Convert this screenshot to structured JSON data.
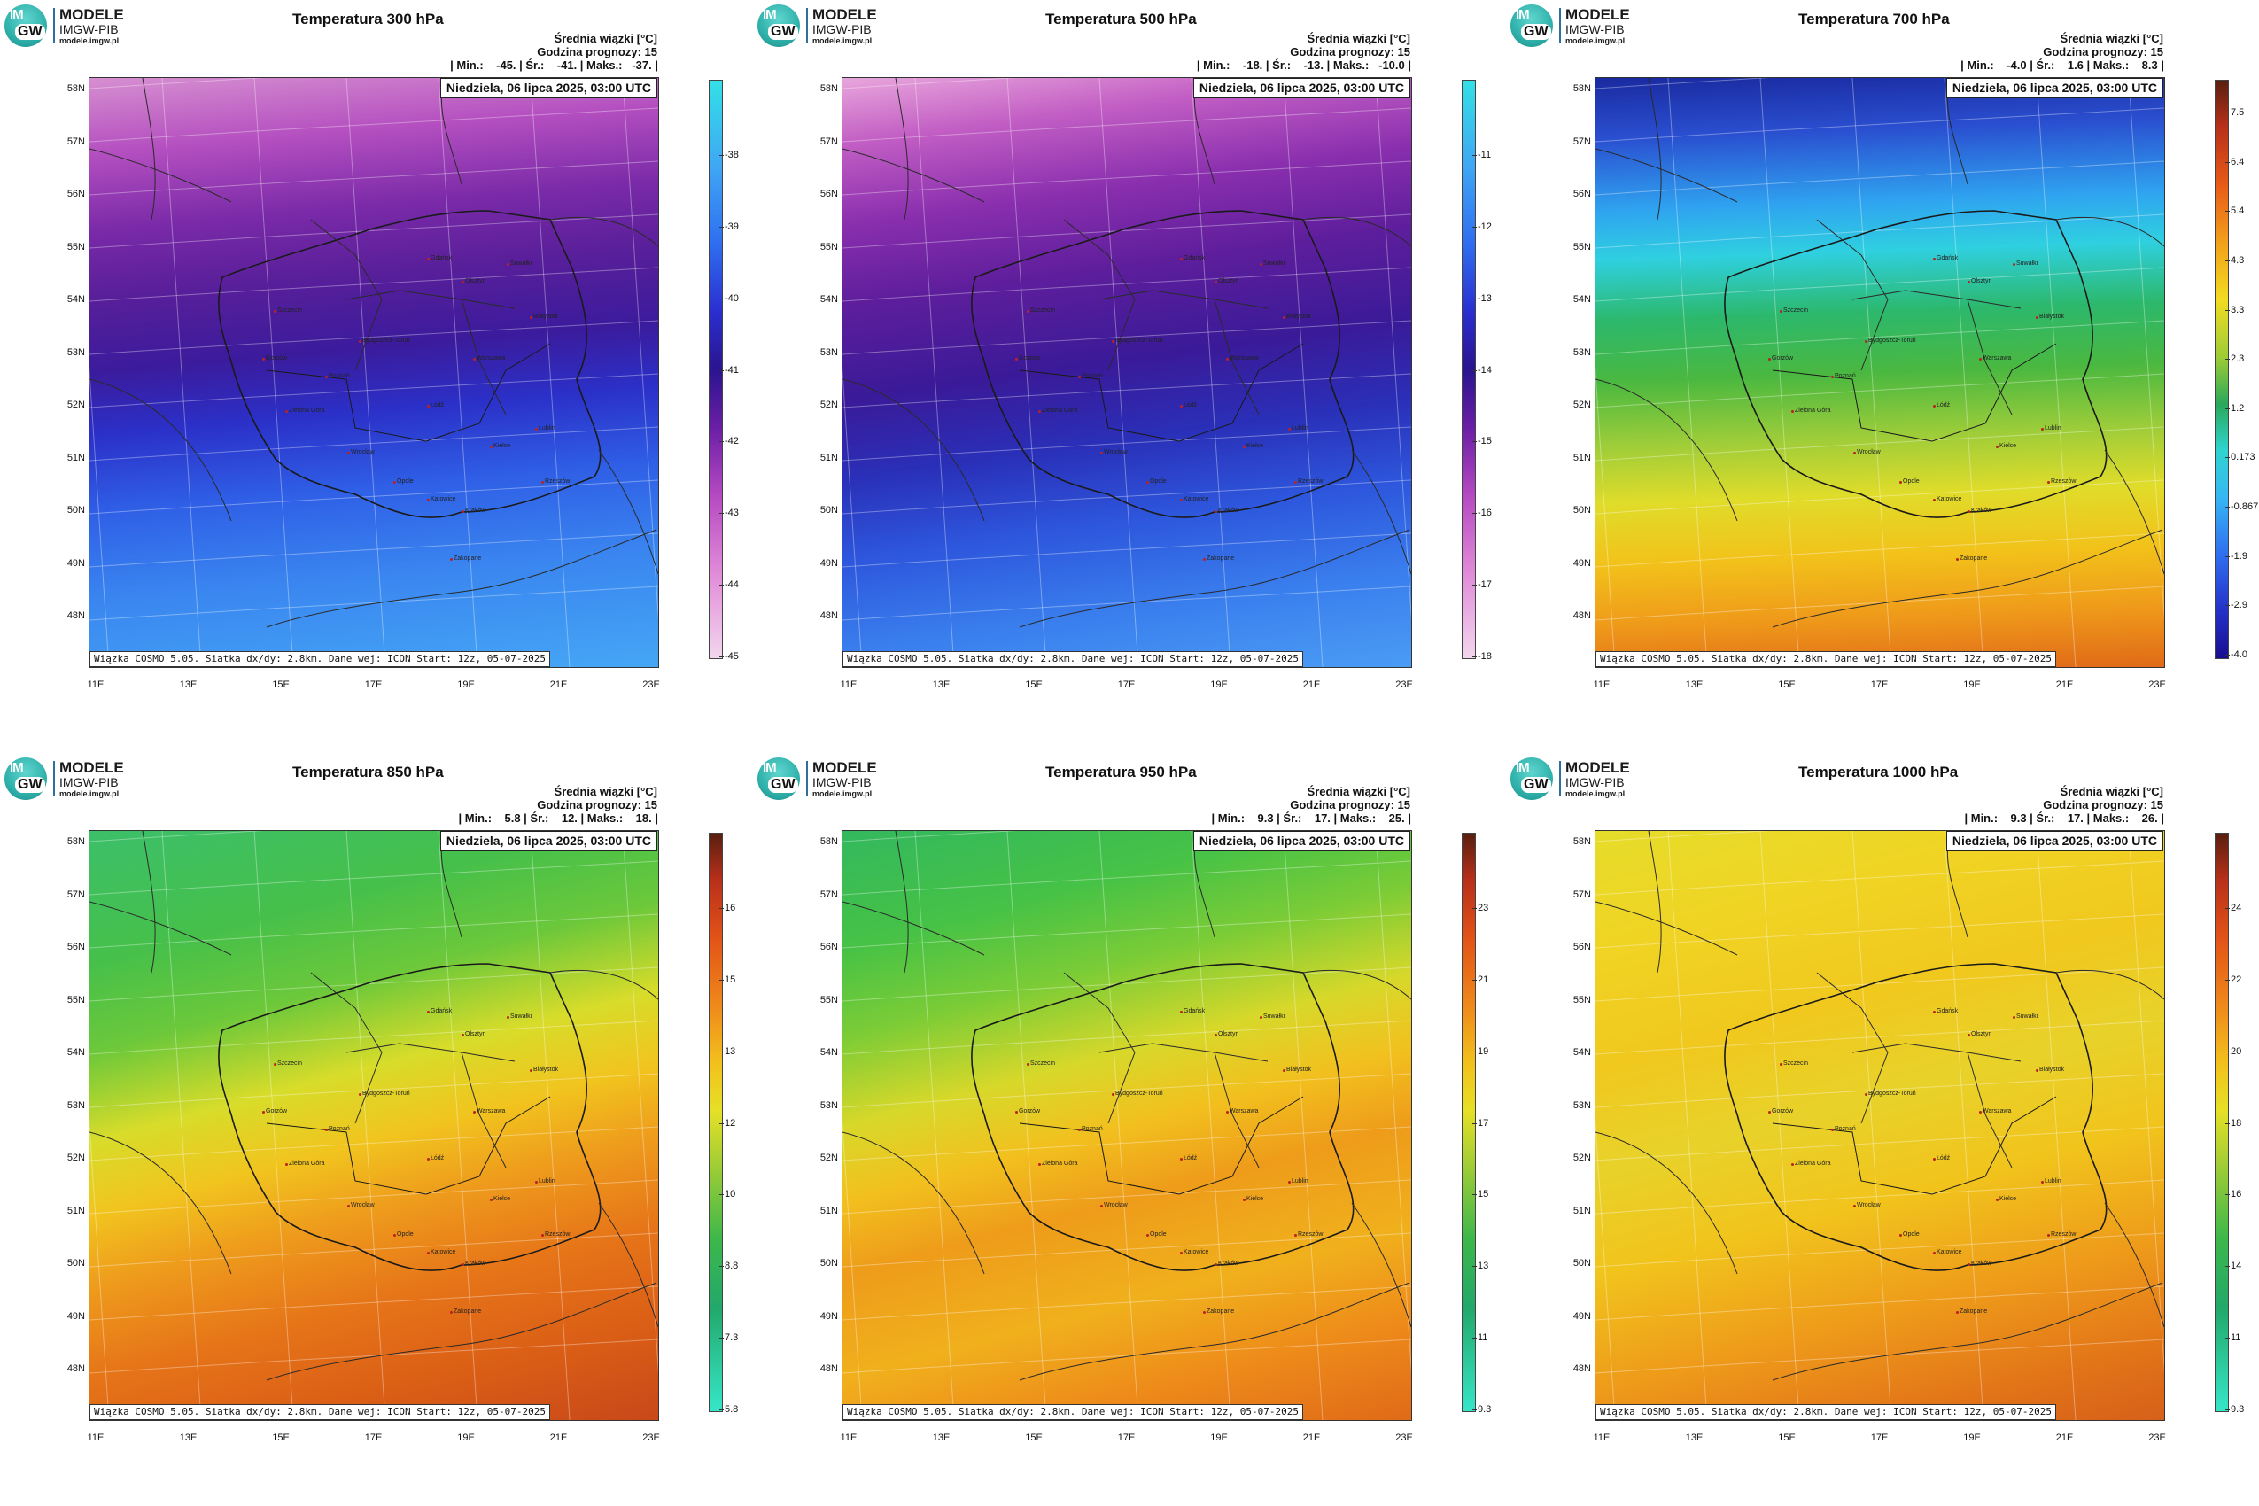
{
  "logo": {
    "badge_top": "IM",
    "badge_bottom": "GW",
    "name": "MODELE",
    "org": "IMGW-PIB",
    "url": "modele.imgw.pl"
  },
  "common": {
    "header_line1": "Średnia wiązki [°C]",
    "header_line2": "Godzina prognozy: 15",
    "date": "Niedziela, 06 lipca 2025, 03:00 UTC",
    "footer": "Wiązka COSMO 5.05. Siatka dx/dy: 2.8km. Dane wej: ICON Start: 12z, 05-07-2025",
    "lat_labels": [
      "58N",
      "57N",
      "56N",
      "55N",
      "54N",
      "53N",
      "52N",
      "51N",
      "50N",
      "49N",
      "48N"
    ],
    "lon_labels": [
      "11E",
      "13E",
      "15E",
      "17E",
      "19E",
      "21E",
      "23E"
    ]
  },
  "cities": [
    "Gdańsk",
    "Olsztyn",
    "Suwałki",
    "Szczecin",
    "Białystok",
    "Bydgoszcz-Toruń",
    "Gorzów",
    "Poznań",
    "Warszawa",
    "Zielona Góra",
    "Łódź",
    "Lublin",
    "Wrocław",
    "Kielce",
    "Opole",
    "Rzeszów",
    "Katowice",
    "Kraków",
    "Zakopane"
  ],
  "panels": [
    {
      "title": "Temperatura 300 hPa",
      "stats": "| Min.:    -45. | Śr.:    -41. | Maks.:   -37. |",
      "min": -45,
      "mean": -41,
      "max": -37,
      "colorbar_ticks": [
        "-38",
        "-39",
        "-40",
        "-41",
        "-42",
        "-43",
        "-44",
        "-45"
      ],
      "colorbar_palette": "cold"
    },
    {
      "title": "Temperatura 500 hPa",
      "stats": "| Min.:    -18. | Śr.:    -13. | Maks.:   -10.0 |",
      "min": -18,
      "mean": -13,
      "max": -10.0,
      "colorbar_ticks": [
        "-11",
        "-12",
        "-13",
        "-14",
        "-15",
        "-16",
        "-17",
        "-18"
      ],
      "colorbar_palette": "cold"
    },
    {
      "title": "Temperatura 700 hPa",
      "stats": "| Min.:    -4.0 | Śr.:    1.6 | Maks.:    8.3 |",
      "min": -4.0,
      "mean": 1.6,
      "max": 8.3,
      "colorbar_ticks": [
        "7.5",
        "6.4",
        "5.4",
        "4.3",
        "3.3",
        "2.3",
        "1.2",
        "0.173",
        "-0.867",
        "-1.9",
        "-2.9",
        "-4.0"
      ],
      "colorbar_palette": "full"
    },
    {
      "title": "Temperatura 850 hPa",
      "stats": "| Min.:    5.8 | Śr.:    12. | Maks.:    18. |",
      "min": 5.8,
      "mean": 12,
      "max": 18,
      "colorbar_ticks": [
        "16",
        "15",
        "13",
        "12",
        "10",
        "8.8",
        "7.3",
        "5.8"
      ],
      "colorbar_palette": "warm"
    },
    {
      "title": "Temperatura 950 hPa",
      "stats": "| Min.:    9.3 | Śr.:    17. | Maks.:    25. |",
      "min": 9.3,
      "mean": 17,
      "max": 25,
      "colorbar_ticks": [
        "23",
        "21",
        "19",
        "17",
        "15",
        "13",
        "11",
        "9.3"
      ],
      "colorbar_palette": "warm"
    },
    {
      "title": "Temperatura 1000 hPa",
      "stats": "| Min.:    9.3 | Śr.:    17. | Maks.:    26. |",
      "min": 9.3,
      "mean": 17,
      "max": 26,
      "colorbar_ticks": [
        "24",
        "22",
        "20",
        "18",
        "16",
        "14",
        "11",
        "9.3"
      ],
      "colorbar_palette": "warm"
    }
  ]
}
